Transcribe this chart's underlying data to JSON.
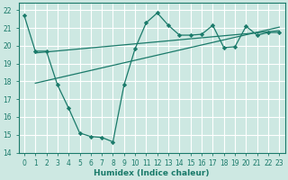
{
  "xlabel": "Humidex (Indice chaleur)",
  "xlim": [
    -0.5,
    23.5
  ],
  "ylim": [
    14,
    22.4
  ],
  "yticks": [
    14,
    15,
    16,
    17,
    18,
    19,
    20,
    21,
    22
  ],
  "xticks": [
    0,
    1,
    2,
    3,
    4,
    5,
    6,
    7,
    8,
    9,
    10,
    11,
    12,
    13,
    14,
    15,
    16,
    17,
    18,
    19,
    20,
    21,
    22,
    23
  ],
  "bg_color": "#cde8e2",
  "grid_color": "#ffffff",
  "line_color": "#1a7a6a",
  "main_line_x": [
    0,
    1,
    2,
    3,
    4,
    5,
    6,
    7,
    8,
    9,
    10,
    11,
    12,
    13,
    14,
    15,
    16,
    17,
    18,
    19,
    20,
    21,
    22,
    23
  ],
  "main_line_y": [
    21.7,
    19.7,
    19.7,
    17.8,
    16.5,
    15.1,
    14.9,
    14.85,
    14.6,
    17.8,
    19.85,
    21.3,
    21.85,
    21.15,
    20.6,
    20.6,
    20.65,
    21.15,
    19.9,
    19.95,
    21.1,
    20.6,
    20.75,
    20.75
  ],
  "trend1_x": [
    1,
    23
  ],
  "trend1_y": [
    17.9,
    21.05
  ],
  "trend2_x": [
    1,
    23
  ],
  "trend2_y": [
    19.6,
    20.85
  ],
  "marker": "D",
  "markersize": 2.2,
  "linewidth": 0.9,
  "tick_fontsize": 5.5,
  "xlabel_fontsize": 6.5
}
